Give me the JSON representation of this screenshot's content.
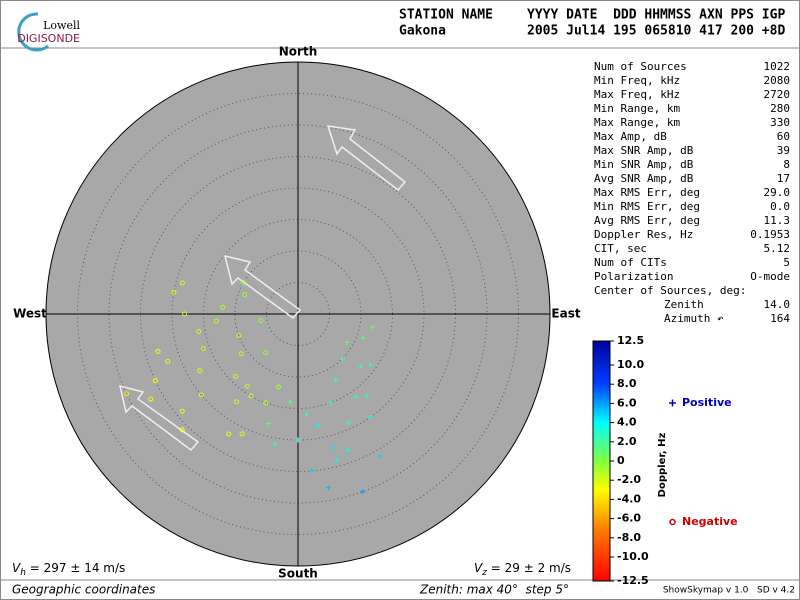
{
  "header": {
    "logo_top": "Lowell",
    "logo_bottom": "DIGISONDE",
    "station_label": "STATION NAME",
    "fields_label": "YYYY DATE  DDD HHMMSS AXN PPS IGP",
    "station": "Gakona",
    "fields": "2005 Jul14 195 065810 417 200 +8D"
  },
  "stats": {
    "rows": [
      [
        "Num of Sources",
        "1022"
      ],
      [
        "Min Freq, kHz",
        "2080"
      ],
      [
        "Max Freq, kHz",
        "2720"
      ],
      [
        "Min Range, km",
        "280"
      ],
      [
        "Max Range, km",
        "330"
      ],
      [
        "Max Amp, dB",
        "60"
      ],
      [
        "Max SNR Amp, dB",
        "39"
      ],
      [
        "Min SNR Amp, dB",
        "8"
      ],
      [
        "Avg SNR Amp, dB",
        "17"
      ],
      [
        "Max RMS Err, deg",
        "29.0"
      ],
      [
        "Min RMS Err, deg",
        "0.0"
      ],
      [
        "Avg RMS Err, deg",
        "11.3"
      ],
      [
        "Doppler Res, Hz",
        "0.1953"
      ],
      [
        "CIT, sec",
        "5.12"
      ],
      [
        "Num of CITs",
        "5"
      ],
      [
        "Polarization",
        "O-mode"
      ]
    ],
    "center_title": "Center of Sources, deg:",
    "center_rows": [
      [
        "Zenith",
        "14.0"
      ],
      [
        "Azimuth ↶",
        "164"
      ]
    ]
  },
  "footer": {
    "vh_symbol": "V",
    "vh_sub": "h",
    "vh_text": " = 297 ± 14 m/s",
    "vz_symbol": "V",
    "vz_sub": "z",
    "vz_text": " = 29 ± 2 m/s",
    "coords": "Geographic coordinates",
    "zenith": "Zenith: max 40°  step 5°",
    "version": "ShowSkymap v 1.0   SD v 4.2"
  },
  "chart_data": {
    "type": "skymap",
    "directions": {
      "north": "North",
      "south": "South",
      "west": "West",
      "east": "East"
    },
    "rlim": [
      0,
      40
    ],
    "rticks": [
      5,
      10,
      15,
      20,
      25,
      30,
      35
    ],
    "colorbar": {
      "label": "Doppler, Hz",
      "lim": [
        -12.5,
        12.5
      ],
      "ticks": [
        12.5,
        {
          "value": 10,
          "label": "10.0"
        },
        {
          "value": 8,
          "label": "8.0"
        },
        {
          "value": 6,
          "label": "6.0"
        },
        {
          "value": 4,
          "label": "4.0"
        },
        {
          "value": 2,
          "label": "2.0"
        },
        0,
        {
          "value": -2,
          "label": "-2.0"
        },
        {
          "value": -4,
          "label": "-4.0"
        },
        {
          "value": -6,
          "label": "-6.0"
        },
        {
          "value": -8,
          "label": "-8.0"
        },
        {
          "value": -10,
          "label": "-10.0"
        },
        -12.5
      ],
      "colormap": [
        {
          "value": 12.5,
          "color": "#0000a0"
        },
        {
          "value": 8,
          "color": "#0040ff"
        },
        {
          "value": 4,
          "color": "#00ffff"
        },
        {
          "value": 0,
          "color": "#80ff40"
        },
        {
          "value": -3,
          "color": "#ffff00"
        },
        {
          "value": -7,
          "color": "#ff8000"
        },
        {
          "value": -12.5,
          "color": "#ff0000"
        }
      ]
    },
    "series": [
      {
        "name": "Positive",
        "color": "#0000c0",
        "marker": "plus",
        "zenith": [
          15,
          18,
          12,
          20,
          22,
          16,
          25,
          10,
          19,
          14,
          23,
          17,
          28,
          13,
          21,
          9,
          26,
          11,
          24,
          30,
          16,
          20,
          18,
          14,
          12
        ],
        "azimuth": [
          160,
          170,
          150,
          180,
          165,
          145,
          175,
          135,
          155,
          185,
          160,
          140,
          170,
          130,
          190,
          120,
          150,
          110,
          165,
          160,
          175,
          145,
          195,
          125,
          100
        ],
        "doppler": [
          3,
          4,
          2.5,
          3.5,
          4.5,
          2.8,
          5,
          2,
          3.2,
          1.5,
          4,
          3,
          5.5,
          2.2,
          1.8,
          1,
          4.8,
          1.2,
          3.8,
          6,
          2.6,
          3.4,
          1.6,
          2.4,
          0.8
        ]
      },
      {
        "name": "Negative",
        "color": "#d00000",
        "marker": "circle",
        "zenith": [
          14,
          18,
          10,
          22,
          16,
          12,
          20,
          25,
          8,
          15,
          19,
          11,
          23,
          17,
          13,
          27,
          9,
          21,
          16,
          24,
          30,
          12,
          18,
          14,
          20,
          6,
          26,
          15,
          10,
          22
        ],
        "azimuth": [
          225,
          240,
          250,
          210,
          260,
          275,
          230,
          245,
          220,
          200,
          285,
          235,
          255,
          215,
          265,
          240,
          290,
          205,
          250,
          230,
          245,
          195,
          270,
          215,
          280,
          260,
          225,
          210,
          300,
          250
        ],
        "doppler": [
          -1.5,
          -2,
          -1,
          -2.5,
          -1.8,
          -0.8,
          -2.2,
          -3,
          -0.5,
          -1.2,
          -1.9,
          -1,
          -2.8,
          -1.6,
          -1.1,
          -3.2,
          -0.7,
          -2.1,
          -1.4,
          -2.6,
          -3.5,
          -0.9,
          -1.7,
          -1.3,
          -2.4,
          -0.4,
          -2.9,
          -1.5,
          -0.6,
          -2.3
        ]
      }
    ]
  }
}
